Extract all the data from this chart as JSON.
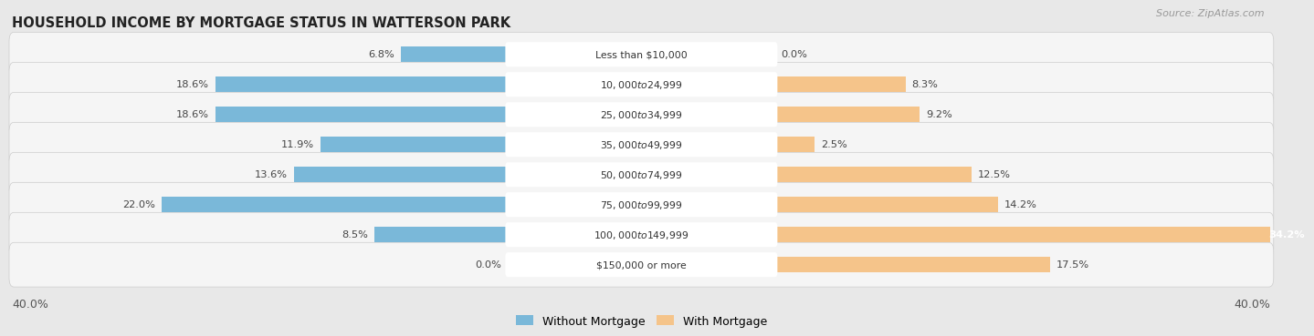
{
  "title": "HOUSEHOLD INCOME BY MORTGAGE STATUS IN WATTERSON PARK",
  "source": "Source: ZipAtlas.com",
  "categories": [
    "Less than $10,000",
    "$10,000 to $24,999",
    "$25,000 to $34,999",
    "$35,000 to $49,999",
    "$50,000 to $74,999",
    "$75,000 to $99,999",
    "$100,000 to $149,999",
    "$150,000 or more"
  ],
  "without_mortgage": [
    6.8,
    18.6,
    18.6,
    11.9,
    13.6,
    22.0,
    8.5,
    0.0
  ],
  "with_mortgage": [
    0.0,
    8.3,
    9.2,
    2.5,
    12.5,
    14.2,
    34.2,
    17.5
  ],
  "color_without": "#7ab8d9",
  "color_with": "#f5c48a",
  "axis_limit": 40.0,
  "background_color": "#e8e8e8",
  "row_bg_color": "#f5f5f5",
  "row_bg_odd": "#ebebeb",
  "legend_labels": [
    "Without Mortgage",
    "With Mortgage"
  ],
  "label_color_dark": "#444444",
  "label_color_white": "#ffffff",
  "white_label_threshold": 30.0
}
